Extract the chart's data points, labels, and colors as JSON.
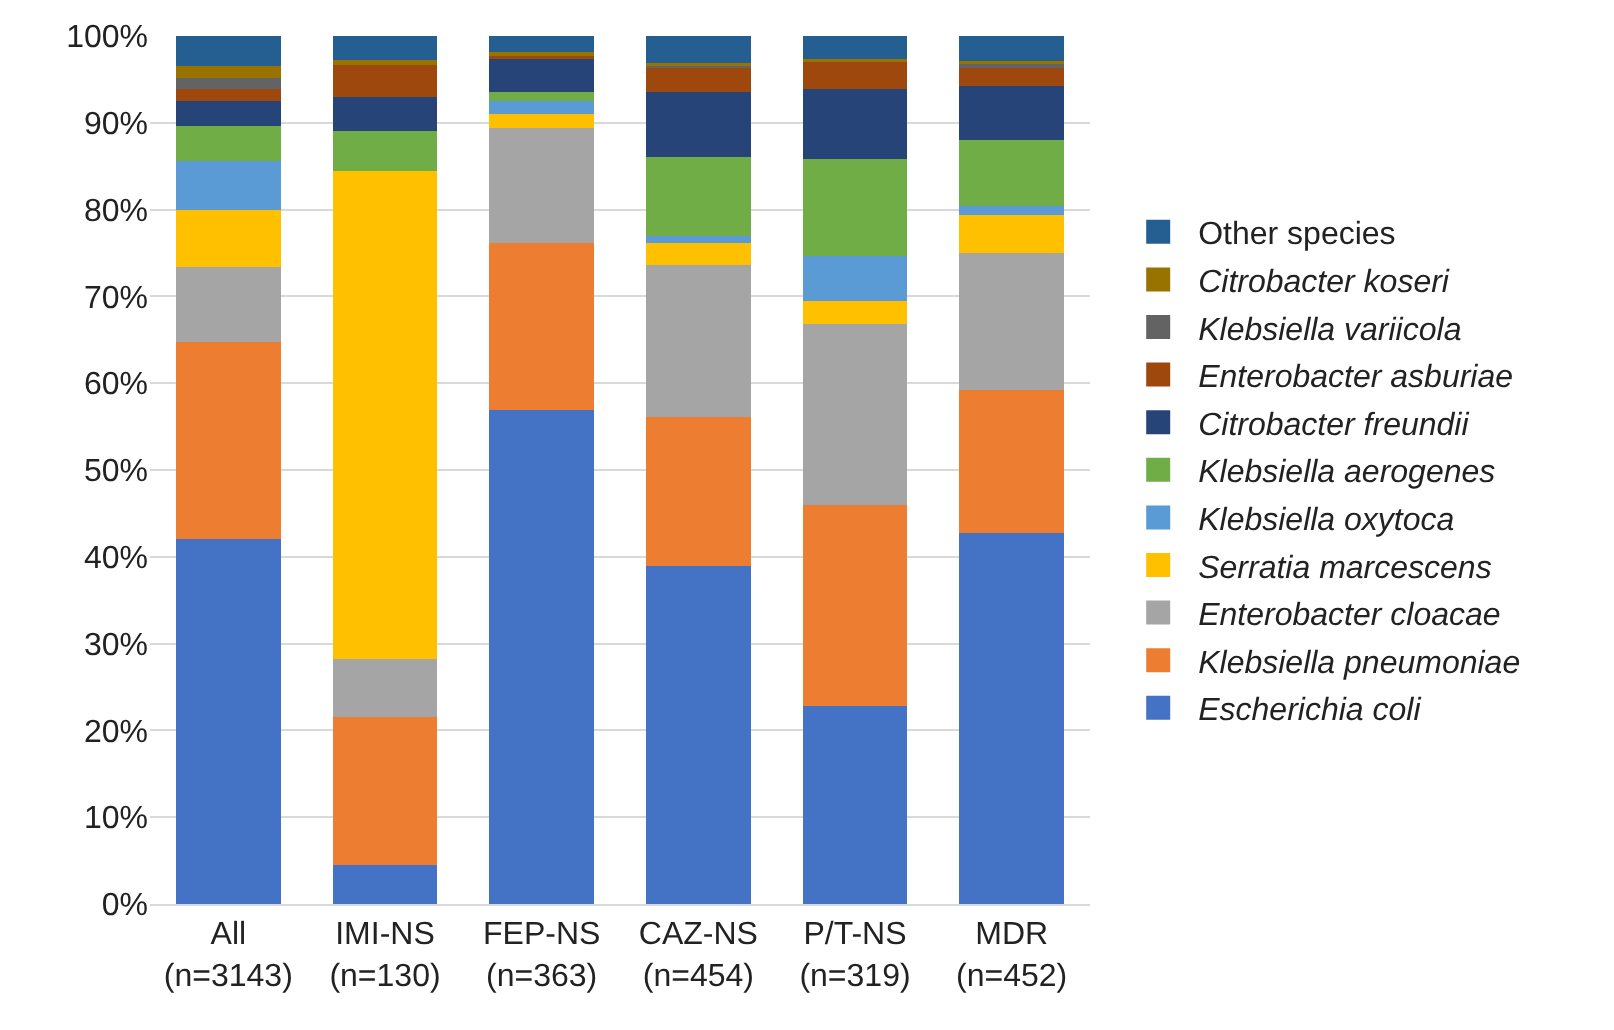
{
  "chart_data": {
    "type": "bar",
    "stacked": true,
    "categories": [
      "All\n(n=3143)",
      "IMI-NS\n(n=130)",
      "FEP-NS\n(n=363)",
      "CAZ-NS\n(n=454)",
      "P/T-NS\n(n=319)",
      "MDR\n(n=452)"
    ],
    "series": [
      {
        "name": "Escherichia coli",
        "color": "#4472c4",
        "values": [
          42,
          4.5,
          56.9,
          38.9,
          22.8,
          42.8
        ]
      },
      {
        "name": "Klebsiella pneumoniae",
        "color": "#ed7d31",
        "values": [
          22.7,
          17,
          19.3,
          17.2,
          23.2,
          16.4
        ]
      },
      {
        "name": "Enterobacter cloacae",
        "color": "#a5a5a5",
        "values": [
          8.7,
          6.7,
          13.2,
          17.5,
          20.8,
          15.8
        ]
      },
      {
        "name": "Serratia marcescens",
        "color": "#ffc000",
        "values": [
          6.5,
          56.2,
          1.6,
          2.5,
          2.7,
          4.4
        ]
      },
      {
        "name": "Klebsiella oxytoca",
        "color": "#5b9bd5",
        "values": [
          5.7,
          0,
          1.5,
          0.9,
          5.1,
          1
        ]
      },
      {
        "name": "Klebsiella aerogenes",
        "color": "#70ad47",
        "values": [
          4,
          4.7,
          1,
          9.1,
          11.2,
          7.6
        ]
      },
      {
        "name": "Citrobacter freundii",
        "color": "#264478",
        "values": [
          2.9,
          3.9,
          3.8,
          7.4,
          8.1,
          6.2
        ]
      },
      {
        "name": "Enterobacter asburiae",
        "color": "#9e480e",
        "values": [
          1.4,
          3.7,
          0.6,
          3,
          3.2,
          2.3
        ]
      },
      {
        "name": "Klebsiella variicola",
        "color": "#636363",
        "values": [
          1.3,
          0,
          0,
          0.2,
          0.1,
          0.4
        ]
      },
      {
        "name": "Citrobacter koseri",
        "color": "#997300",
        "values": [
          1.3,
          0.5,
          0.3,
          0.2,
          0.1,
          0.2
        ]
      },
      {
        "name": "Other species",
        "color": "#255e91",
        "values": [
          3.5,
          2.8,
          1.8,
          3.1,
          2.7,
          2.9
        ]
      }
    ],
    "ylim": [
      0,
      100
    ],
    "yticks": [
      {
        "value": 0,
        "label": "0%"
      },
      {
        "value": 10,
        "label": "10%"
      },
      {
        "value": 20,
        "label": "20%"
      },
      {
        "value": 30,
        "label": "30%"
      },
      {
        "value": 40,
        "label": "40%"
      },
      {
        "value": 50,
        "label": "50%"
      },
      {
        "value": 60,
        "label": "60%"
      },
      {
        "value": 70,
        "label": "70%"
      },
      {
        "value": 80,
        "label": "80%"
      },
      {
        "value": 90,
        "label": "90%"
      },
      {
        "value": 100,
        "label": "100%"
      }
    ],
    "grid": "y",
    "legend": "right"
  }
}
